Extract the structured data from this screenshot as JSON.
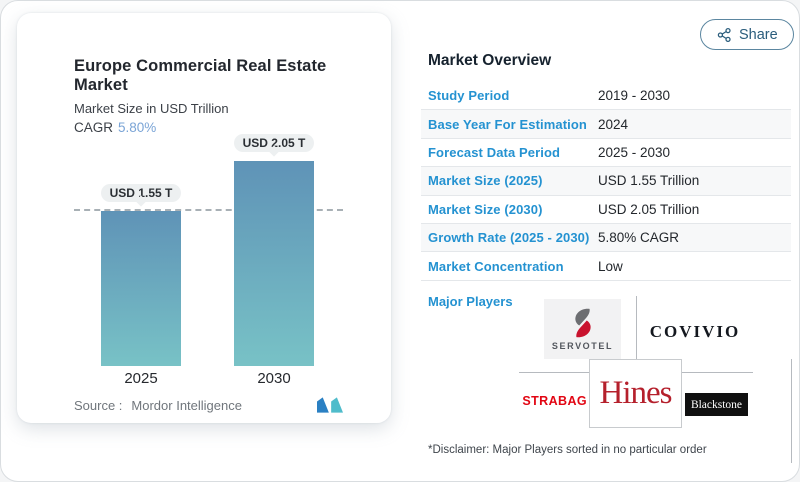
{
  "share": {
    "label": "Share"
  },
  "chart_card": {
    "title": "Europe Commercial Real Estate Market",
    "subtitle": "Market Size in USD Trillion",
    "cagr_label": "CAGR",
    "cagr_value": "5.80%",
    "source_label": "Source :",
    "source_value": "Mordor Intelligence"
  },
  "chart_data": {
    "type": "bar",
    "title": "Europe Commercial Real Estate Market",
    "ylabel": "Market Size in USD Trillion",
    "categories": [
      "2025",
      "2030"
    ],
    "values": [
      1.55,
      2.05
    ],
    "value_labels": [
      "USD 1.55 T",
      "USD 2.05 T"
    ],
    "cagr": "5.80%",
    "reference_line": {
      "y": 1.55,
      "style": "dashed"
    },
    "bar_gradient": [
      "#5f93b7",
      "#78c2c6"
    ],
    "grid": false,
    "legend": false
  },
  "overview": {
    "heading": "Market Overview",
    "rows": [
      {
        "label": "Study Period",
        "value": "2019 - 2030"
      },
      {
        "label": "Base Year For Estimation",
        "value": "2024"
      },
      {
        "label": "Forecast Data Period",
        "value": "2025 - 2030"
      },
      {
        "label": "Market Size (2025)",
        "value": "USD 1.55 Trillion"
      },
      {
        "label": "Market Size (2030)",
        "value": "USD 2.05 Trillion"
      },
      {
        "label": "Growth Rate (2025 - 2030)",
        "value": "5.80% CAGR"
      },
      {
        "label": "Market Concentration",
        "value": "Low"
      }
    ],
    "major_players_label": "Major Players",
    "players": {
      "servotel": "SERVOTEL",
      "covivio": "COVIVIO",
      "strabag": "STRABAG",
      "hines": "Hines",
      "blackstone": "Blackstone"
    },
    "disclaimer": "*Disclaimer: Major Players sorted in no particular order"
  },
  "colors": {
    "accent_blue": "#2492d1",
    "cagr_blue": "#7aa4d6",
    "bar_top": "#5f93b7",
    "bar_bottom": "#78c2c6",
    "servotel_red": "#c9132e",
    "servotel_gray": "#6d6e71",
    "strabag_red": "#e20613",
    "hines_red": "#b5202c",
    "mi_logo_blue": "#2a80c3",
    "mi_logo_teal": "#4fbccb"
  }
}
